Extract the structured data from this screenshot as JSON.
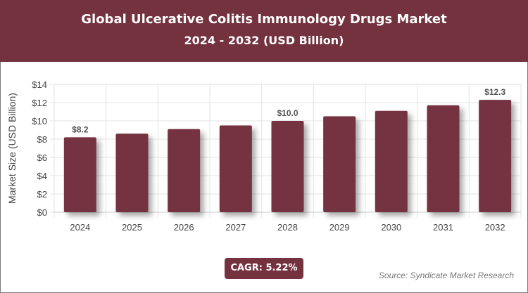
{
  "header": {
    "title": "Global Ulcerative Colitis Immunology Drugs Market",
    "subtitle": "2024 - 2032 (USD Billion)"
  },
  "chart_data": {
    "type": "bar",
    "categories": [
      "2024",
      "2025",
      "2026",
      "2027",
      "2028",
      "2029",
      "2030",
      "2031",
      "2032"
    ],
    "values": [
      8.2,
      8.6,
      9.1,
      9.5,
      10.0,
      10.5,
      11.1,
      11.7,
      12.3
    ],
    "data_labels": {
      "0": "$8.2",
      "4": "$10.0",
      "8": "$12.3"
    },
    "ylabel": "Market Size (USD Billion)",
    "xlabel": "",
    "ylim": [
      0,
      14
    ],
    "yticks": [
      "$0",
      "$2",
      "$4",
      "$6",
      "$8",
      "$10",
      "$12",
      "$14"
    ],
    "grid": true,
    "bar_color": "#74323f"
  },
  "footer": {
    "cagr": "CAGR: 5.22%",
    "source": "Source: Syndicate Market Research"
  }
}
